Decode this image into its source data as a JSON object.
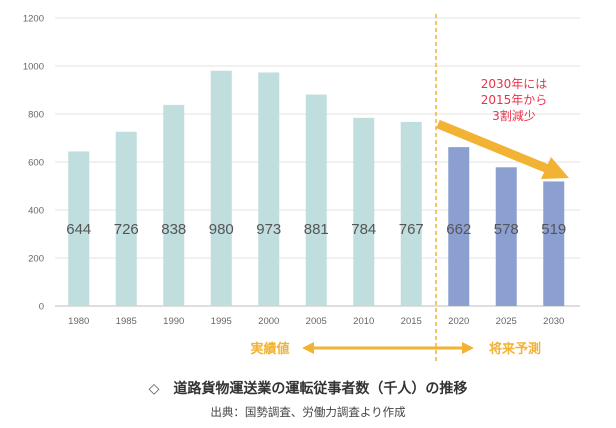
{
  "chart_data": {
    "type": "bar",
    "categories": [
      "1980",
      "1985",
      "1990",
      "1995",
      "2000",
      "2005",
      "2010",
      "2015",
      "2020",
      "2025",
      "2030"
    ],
    "values": [
      644,
      726,
      838,
      980,
      973,
      881,
      784,
      767,
      662,
      578,
      519
    ],
    "value_labels": [
      "644",
      "726",
      "838",
      "980",
      "973",
      "881",
      "784",
      "767",
      "662",
      "578",
      "519"
    ],
    "yticks": [
      "0",
      "200",
      "400",
      "600",
      "800",
      "1000",
      "1200"
    ],
    "ylim": [
      0,
      1200
    ],
    "grid": true,
    "title": "道路貨物運送業の運転従事者数（千人）の推移",
    "xlabel": "",
    "ylabel": "",
    "actual_color": "#bfdedd",
    "forecast_color": "#8c9fd1",
    "forecast_start_index": 8,
    "phase_labels": {
      "actual": "実績値",
      "forecast": "将来予測"
    },
    "annotation": {
      "lines": [
        "2030年には",
        "2015年から",
        "3割減少"
      ],
      "color": "#e8334a"
    },
    "arrow_color": "#f2b233",
    "divider_color": "#f2b233"
  },
  "caption": {
    "symbol": "◇",
    "text": "道路貨物運送業の運転従事者数（千人）の推移"
  },
  "source": "出典：国勢調査、労働力調査より作成"
}
